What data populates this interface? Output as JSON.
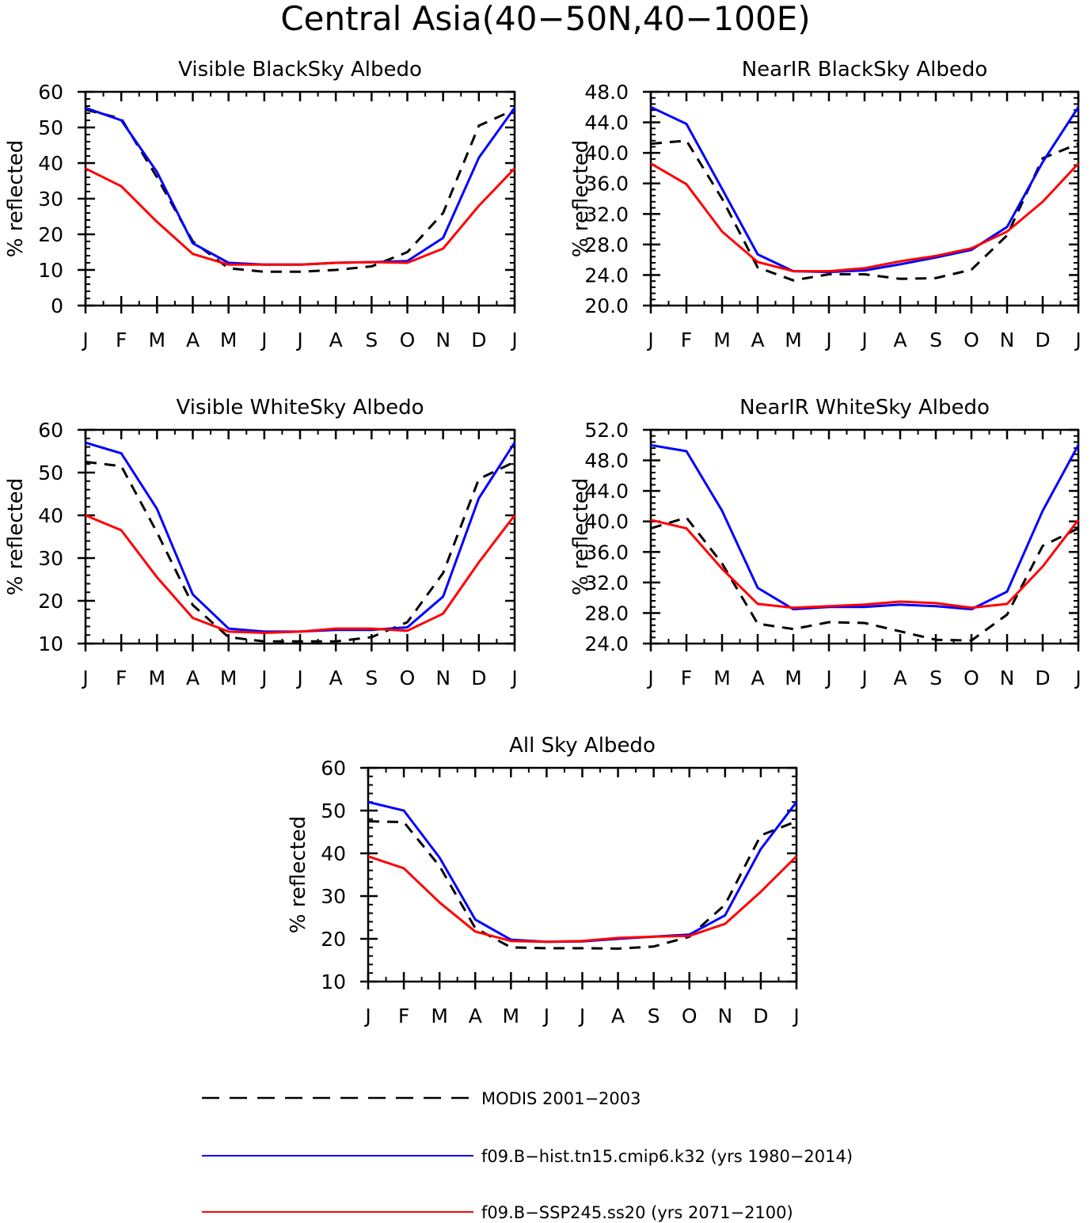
{
  "figure": {
    "title": "Central Asia(40−50N,40−100E)"
  },
  "legend": {
    "placement": "bottom",
    "entries": [
      {
        "label": "MODIS 2001−2003",
        "color": "#000000",
        "dashed": true
      },
      {
        "label": "f09.B−hist.tn15.cmip6.k32 (yrs 1980−2014)",
        "color": "#0000ff",
        "dashed": false
      },
      {
        "label": "f09.B−SSP245.ss20 (yrs 2071−2100)",
        "color": "#ff0000",
        "dashed": false
      }
    ]
  },
  "colors": {
    "modis": "#000000",
    "hist": "#0000ff",
    "ssp": "#ff0000"
  },
  "chart_data": [
    {
      "type": "line",
      "title": "Visible BlackSky Albedo",
      "xlabel": "",
      "ylabel": "% reflected",
      "categories": [
        "J",
        "F",
        "M",
        "A",
        "M",
        "J",
        "J",
        "A",
        "S",
        "O",
        "N",
        "D",
        "J"
      ],
      "ylim": [
        0,
        60
      ],
      "yticks": [
        0,
        10,
        20,
        30,
        40,
        50,
        60
      ],
      "ytick_labels": [
        "0",
        "10",
        "20",
        "30",
        "40",
        "50",
        "60"
      ],
      "grid": false,
      "series": [
        {
          "name": "MODIS 2001−2003",
          "values": [
            55.0,
            52.5,
            36.0,
            18.0,
            10.5,
            9.5,
            9.5,
            10.0,
            11.0,
            15.0,
            26.0,
            50.5,
            55.0
          ]
        },
        {
          "name": "f09.B−hist.tn15.cmip6.k32 (yrs 1980−2014)",
          "values": [
            55.5,
            52.0,
            37.5,
            17.5,
            12.0,
            11.5,
            11.5,
            12.0,
            12.2,
            12.5,
            19.0,
            41.5,
            55.5
          ]
        },
        {
          "name": "f09.B−SSP245.ss20 (yrs 2071−2100)",
          "values": [
            38.5,
            33.5,
            23.5,
            14.5,
            11.5,
            11.5,
            11.5,
            12.0,
            12.2,
            12.0,
            16.0,
            28.0,
            38.5
          ]
        }
      ]
    },
    {
      "type": "line",
      "title": "NearIR BlackSky Albedo",
      "xlabel": "",
      "ylabel": "% reflected",
      "categories": [
        "J",
        "F",
        "M",
        "A",
        "M",
        "J",
        "J",
        "A",
        "S",
        "O",
        "N",
        "D",
        "J"
      ],
      "ylim": [
        20,
        48
      ],
      "yticks": [
        20,
        24,
        28,
        32,
        36,
        40,
        44,
        48
      ],
      "ytick_labels": [
        "20.0",
        "24.0",
        "28.0",
        "32.0",
        "36.0",
        "40.0",
        "44.0",
        "48.0"
      ],
      "grid": false,
      "series": [
        {
          "name": "MODIS 2001−2003",
          "values": [
            41.2,
            41.6,
            34.0,
            25.0,
            23.3,
            24.1,
            24.1,
            23.5,
            23.6,
            24.7,
            29.2,
            39.3,
            41.2
          ]
        },
        {
          "name": "f09.B−hist.tn15.cmip6.k32 (yrs 1980−2014)",
          "values": [
            46.0,
            43.8,
            35.3,
            26.7,
            24.5,
            24.4,
            24.6,
            25.4,
            26.3,
            27.3,
            30.3,
            38.8,
            46.0
          ]
        },
        {
          "name": "f09.B−SSP245.ss20 (yrs 2071−2100)",
          "values": [
            38.6,
            35.9,
            29.7,
            25.7,
            24.5,
            24.5,
            24.9,
            25.8,
            26.5,
            27.5,
            29.7,
            33.6,
            38.6
          ]
        }
      ]
    },
    {
      "type": "line",
      "title": "Visible WhiteSky Albedo",
      "xlabel": "",
      "ylabel": "% reflected",
      "categories": [
        "J",
        "F",
        "M",
        "A",
        "M",
        "J",
        "J",
        "A",
        "S",
        "O",
        "N",
        "D",
        "J"
      ],
      "ylim": [
        10,
        60
      ],
      "yticks": [
        10,
        20,
        30,
        40,
        50,
        60
      ],
      "ytick_labels": [
        "10",
        "20",
        "30",
        "40",
        "50",
        "60"
      ],
      "grid": false,
      "series": [
        {
          "name": "MODIS 2001−2003",
          "values": [
            52.5,
            51.5,
            36.0,
            19.0,
            11.5,
            10.5,
            10.5,
            10.5,
            11.5,
            15.0,
            26.5,
            48.5,
            52.5
          ]
        },
        {
          "name": "f09.B−hist.tn15.cmip6.k32 (yrs 1980−2014)",
          "values": [
            57.0,
            54.5,
            41.5,
            21.5,
            13.5,
            12.8,
            12.8,
            13.2,
            13.2,
            13.8,
            21.0,
            44.0,
            57.0
          ]
        },
        {
          "name": "f09.B−SSP245.ss20 (yrs 2071−2100)",
          "values": [
            40.0,
            36.5,
            25.5,
            16.0,
            12.8,
            12.5,
            12.8,
            13.5,
            13.5,
            13.0,
            17.0,
            29.0,
            40.0
          ]
        }
      ]
    },
    {
      "type": "line",
      "title": "NearIR WhiteSky Albedo",
      "xlabel": "",
      "ylabel": "% reflected",
      "categories": [
        "J",
        "F",
        "M",
        "A",
        "M",
        "J",
        "J",
        "A",
        "S",
        "O",
        "N",
        "D",
        "J"
      ],
      "ylim": [
        24,
        52
      ],
      "yticks": [
        24,
        28,
        32,
        36,
        40,
        44,
        48,
        52
      ],
      "ytick_labels": [
        "24.0",
        "28.0",
        "32.0",
        "36.0",
        "40.0",
        "44.0",
        "48.0",
        "52.0"
      ],
      "grid": false,
      "series": [
        {
          "name": "MODIS 2001−2003",
          "values": [
            39.1,
            40.5,
            34.5,
            26.6,
            25.9,
            26.8,
            26.7,
            25.6,
            24.5,
            24.4,
            27.8,
            36.8,
            39.1
          ]
        },
        {
          "name": "f09.B−hist.tn15.cmip6.k32 (yrs 1980−2014)",
          "values": [
            50.0,
            49.2,
            41.4,
            31.3,
            28.5,
            28.8,
            28.8,
            29.1,
            28.9,
            28.5,
            30.8,
            41.4,
            50.0
          ]
        },
        {
          "name": "f09.B−SSP245.ss20 (yrs 2071−2100)",
          "values": [
            40.2,
            39.1,
            33.8,
            29.2,
            28.7,
            28.9,
            29.1,
            29.5,
            29.3,
            28.7,
            29.2,
            34.1,
            40.2
          ]
        }
      ]
    },
    {
      "type": "line",
      "title": "All Sky Albedo",
      "xlabel": "",
      "ylabel": "% reflected",
      "categories": [
        "J",
        "F",
        "M",
        "A",
        "M",
        "J",
        "J",
        "A",
        "S",
        "O",
        "N",
        "D",
        "J"
      ],
      "ylim": [
        10,
        60
      ],
      "yticks": [
        10,
        20,
        30,
        40,
        50,
        60
      ],
      "ytick_labels": [
        "10",
        "20",
        "30",
        "40",
        "50",
        "60"
      ],
      "grid": false,
      "series": [
        {
          "name": "MODIS 2001−2003",
          "values": [
            47.5,
            47.3,
            37.0,
            22.5,
            18.0,
            17.8,
            17.8,
            17.7,
            18.2,
            20.5,
            28.0,
            44.2,
            47.5
          ]
        },
        {
          "name": "f09.B−hist.tn15.cmip6.k32 (yrs 1980−2014)",
          "values": [
            52.0,
            50.0,
            39.0,
            24.5,
            19.8,
            19.3,
            19.4,
            20.0,
            20.5,
            21.0,
            25.5,
            41.0,
            52.0
          ]
        },
        {
          "name": "f09.B−SSP245.ss20 (yrs 2071−2100)",
          "values": [
            39.3,
            36.5,
            28.5,
            21.7,
            19.5,
            19.3,
            19.5,
            20.2,
            20.5,
            20.7,
            23.5,
            31.0,
            39.3
          ]
        }
      ]
    }
  ]
}
